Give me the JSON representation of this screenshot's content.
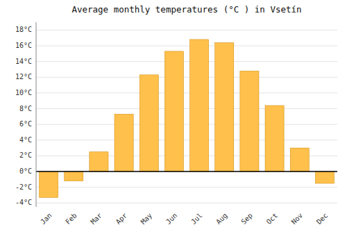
{
  "chart_data": {
    "type": "bar",
    "title": "Average monthly temperatures (°C ) in Vsetín",
    "categories": [
      "Jan",
      "Feb",
      "Mar",
      "Apr",
      "May",
      "Jun",
      "Jul",
      "Aug",
      "Sep",
      "Oct",
      "Nov",
      "Dec"
    ],
    "values": [
      -3.3,
      -1.2,
      2.5,
      7.3,
      12.3,
      15.3,
      16.8,
      16.4,
      12.8,
      8.4,
      3.0,
      -1.5
    ],
    "color": "#FFC04C",
    "ylim": [
      -4.5,
      19.0
    ],
    "yticks": [
      {
        "value": -4,
        "label": "-4°C"
      },
      {
        "value": -2,
        "label": "-2°C"
      },
      {
        "value": 0,
        "label": "0°C"
      },
      {
        "value": 2,
        "label": "2°C"
      },
      {
        "value": 4,
        "label": "4°C"
      },
      {
        "value": 6,
        "label": "6°C"
      },
      {
        "value": 8,
        "label": "8°C"
      },
      {
        "value": 10,
        "label": "10°C"
      },
      {
        "value": 12,
        "label": "12°C"
      },
      {
        "value": 14,
        "label": "14°C"
      },
      {
        "value": 16,
        "label": "16°C"
      },
      {
        "value": 18,
        "label": "18°C"
      }
    ],
    "grid": true
  }
}
